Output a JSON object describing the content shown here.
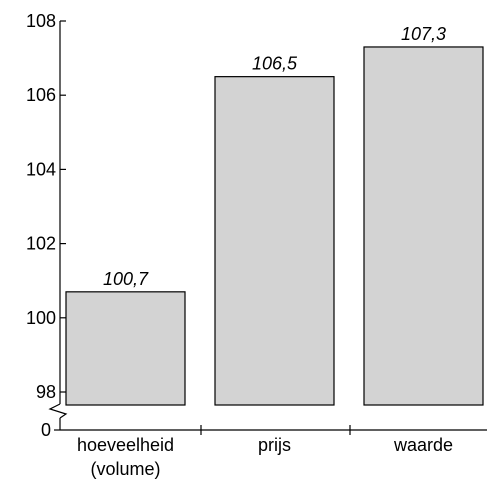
{
  "chart_data": {
    "type": "bar",
    "categories": [
      "hoeveelheid (volume)",
      "prijs",
      "waarde"
    ],
    "category_lines": [
      [
        "hoeveelheid",
        "(volume)"
      ],
      [
        "prijs"
      ],
      [
        "waarde"
      ]
    ],
    "values": [
      100.7,
      106.5,
      107.3
    ],
    "value_labels": [
      "100,7",
      "106,5",
      "107,3"
    ],
    "ylim": [
      98,
      108
    ],
    "y_ticks": [
      98,
      100,
      102,
      104,
      106,
      108
    ],
    "y_tick_labels": [
      "98",
      "100",
      "102",
      "104",
      "106",
      "108"
    ],
    "axis_break": true,
    "zero_label": "0",
    "title": "",
    "xlabel": "",
    "ylabel": "",
    "bar_color": "#d3d3d3",
    "bar_stroke": "#000000",
    "grid": false
  }
}
